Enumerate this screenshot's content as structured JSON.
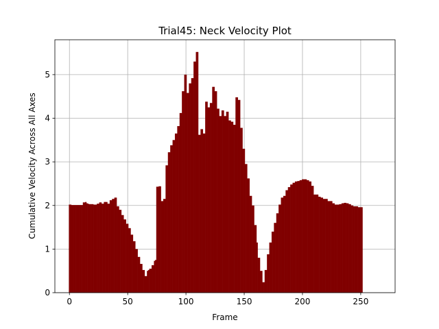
{
  "chart_data": {
    "type": "bar",
    "title": "Trial45: Neck Velocity Plot",
    "xlabel": "Frame",
    "ylabel": "Cumulative Velocity Across All Axes",
    "xlim": [
      -12.5,
      279.5
    ],
    "ylim": [
      0,
      5.8
    ],
    "xticks": [
      0,
      50,
      100,
      150,
      200,
      250
    ],
    "yticks": [
      0,
      1,
      2,
      3,
      4,
      5
    ],
    "grid": true,
    "bar_color": "#800000",
    "series": [
      {
        "x_start": 0,
        "x_step": 1,
        "values": [
          2.02,
          2.02,
          2.01,
          2.01,
          2.01,
          2.01,
          2.01,
          2.01,
          2.01,
          2.01,
          2.01,
          2.01,
          2.07,
          2.07,
          2.08,
          2.05,
          2.04,
          2.03,
          2.03,
          2.03,
          2.03,
          2.02,
          2.02,
          2.02,
          2.04,
          2.04,
          2.07,
          2.07,
          2.04,
          2.04,
          2.08,
          2.08,
          2.08,
          2.04,
          2.04,
          2.12,
          2.12,
          2.15,
          2.15,
          2.18,
          2.18,
          1.98,
          1.98,
          1.9,
          1.9,
          1.78,
          1.78,
          1.68,
          1.68,
          1.58,
          1.58,
          1.48,
          1.48,
          1.33,
          1.33,
          1.18,
          1.18,
          1.0,
          1.0,
          0.82,
          0.82,
          0.66,
          0.66,
          0.52,
          0.52,
          0.38,
          0.38,
          0.5,
          0.52,
          0.55,
          0.55,
          0.63,
          0.63,
          0.73,
          0.75,
          2.43,
          2.43,
          2.44,
          2.44,
          2.1,
          2.1,
          2.15,
          2.15,
          2.92,
          2.92,
          3.22,
          3.22,
          3.38,
          3.38,
          3.5,
          3.5,
          3.65,
          3.65,
          3.82,
          3.82,
          4.12,
          4.12,
          4.62,
          4.62,
          5.0,
          5.0,
          4.58,
          4.58,
          4.8,
          4.8,
          4.92,
          4.92,
          5.3,
          5.3,
          5.52,
          5.52,
          3.62,
          3.62,
          3.75,
          3.75,
          3.65,
          3.65,
          4.38,
          4.38,
          4.25,
          4.25,
          4.35,
          4.35,
          4.72,
          4.72,
          4.62,
          4.62,
          4.22,
          4.22,
          4.05,
          4.05,
          4.18,
          4.18,
          4.05,
          4.05,
          4.15,
          4.15,
          3.95,
          3.95,
          3.92,
          3.92,
          3.85,
          3.85,
          4.48,
          4.48,
          4.42,
          4.42,
          3.78,
          3.78,
          3.3,
          3.3,
          2.95,
          2.95,
          2.62,
          2.62,
          2.22,
          2.22,
          2.0,
          2.0,
          1.55,
          1.55,
          1.15,
          0.8,
          0.8,
          0.5,
          0.5,
          0.24,
          0.24,
          0.52,
          0.52,
          0.88,
          0.88,
          1.15,
          1.15,
          1.4,
          1.4,
          1.6,
          1.6,
          1.82,
          1.82,
          2.02,
          2.02,
          2.18,
          2.18,
          2.22,
          2.22,
          2.35,
          2.35,
          2.42,
          2.42,
          2.48,
          2.48,
          2.52,
          2.52,
          2.55,
          2.55,
          2.56,
          2.56,
          2.58,
          2.58,
          2.6,
          2.6,
          2.6,
          2.6,
          2.58,
          2.58,
          2.55,
          2.55,
          2.45,
          2.45,
          2.25,
          2.25,
          2.25,
          2.25,
          2.2,
          2.2,
          2.18,
          2.18,
          2.15,
          2.15,
          2.15,
          2.15,
          2.1,
          2.1,
          2.1,
          2.1,
          2.05,
          2.05,
          2.02,
          2.02,
          2.02,
          2.02,
          2.03,
          2.03,
          2.05,
          2.05,
          2.06,
          2.06,
          2.05,
          2.05,
          2.03,
          2.03,
          2.0,
          2.0,
          1.98,
          1.98,
          1.98,
          1.98,
          1.96,
          1.96,
          1.96,
          1.96
        ]
      }
    ]
  }
}
